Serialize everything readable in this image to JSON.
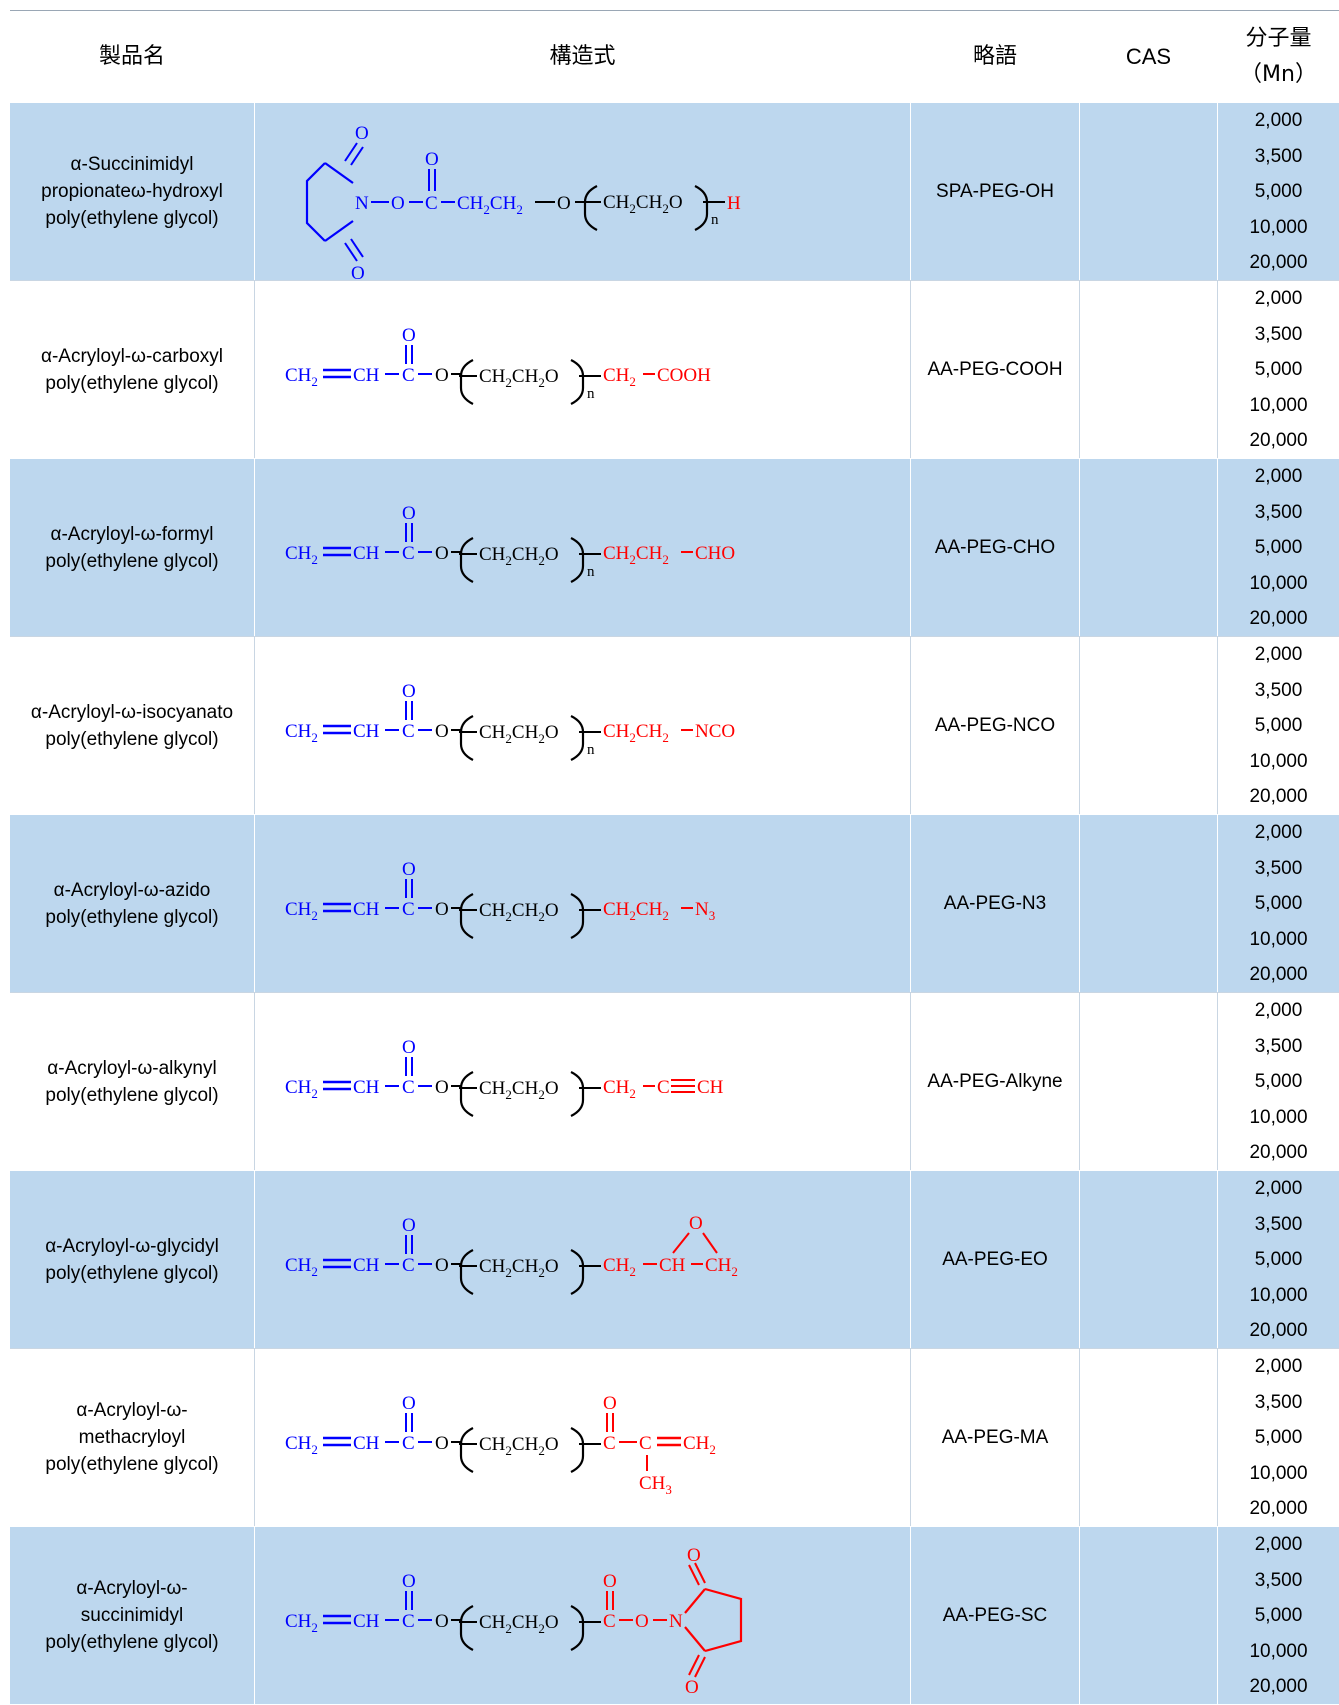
{
  "header": {
    "name": "製品名",
    "structure": "構造式",
    "abbr": "略語",
    "cas": "CAS",
    "mn_line1": "分子量",
    "mn_line2": "（Mn）"
  },
  "mn_values": [
    "2,000",
    "3,500",
    "5,000",
    "10,000",
    "20,000"
  ],
  "colors": {
    "shade": "#bdd7ee",
    "blue": "#0000ff",
    "red": "#ff0000"
  },
  "rows": [
    {
      "name": [
        "α-Succinimidyl",
        "propionateω-hydroxyl",
        "poly(ethylene glycol)"
      ],
      "abbr": "SPA-PEG-OH",
      "cas": ""
    },
    {
      "name": [
        "α-Acryloyl-ω-carboxyl",
        "poly(ethylene glycol)"
      ],
      "abbr": "AA-PEG-COOH",
      "cas": ""
    },
    {
      "name": [
        "α-Acryloyl-ω-formyl",
        "poly(ethylene glycol)"
      ],
      "abbr": "AA-PEG-CHO",
      "cas": ""
    },
    {
      "name": [
        "α-Acryloyl-ω-isocyanato",
        "poly(ethylene glycol)"
      ],
      "abbr": "AA-PEG-NCO",
      "cas": ""
    },
    {
      "name": [
        "α-Acryloyl-ω-azido",
        "poly(ethylene glycol)"
      ],
      "abbr": "AA-PEG-N3",
      "cas": ""
    },
    {
      "name": [
        "α-Acryloyl-ω-alkynyl",
        "poly(ethylene glycol)"
      ],
      "abbr": "AA-PEG-Alkyne",
      "cas": ""
    },
    {
      "name": [
        "α-Acryloyl-ω-glycidyl",
        "poly(ethylene glycol)"
      ],
      "abbr": "AA-PEG-EO",
      "cas": ""
    },
    {
      "name": [
        "α-Acryloyl-ω-",
        "methacryloyl",
        "poly(ethylene glycol)"
      ],
      "abbr": "AA-PEG-MA",
      "cas": ""
    },
    {
      "name": [
        "α-Acryloyl-ω-",
        "succinimidyl",
        "poly(ethylene glycol)"
      ],
      "abbr": "AA-PEG-SC",
      "cas": ""
    }
  ],
  "formula": {
    "O": "O",
    "N": "N",
    "C": "C",
    "H": "H",
    "n": "n",
    "CH2": "CH",
    "sub2": "2",
    "sub3": "3",
    "CH": "CH",
    "peg": "CH",
    "cooh": "COOH",
    "cho": "CHO",
    "nco": "NCO",
    "ch": "CH",
    "ch3": "CH"
  }
}
